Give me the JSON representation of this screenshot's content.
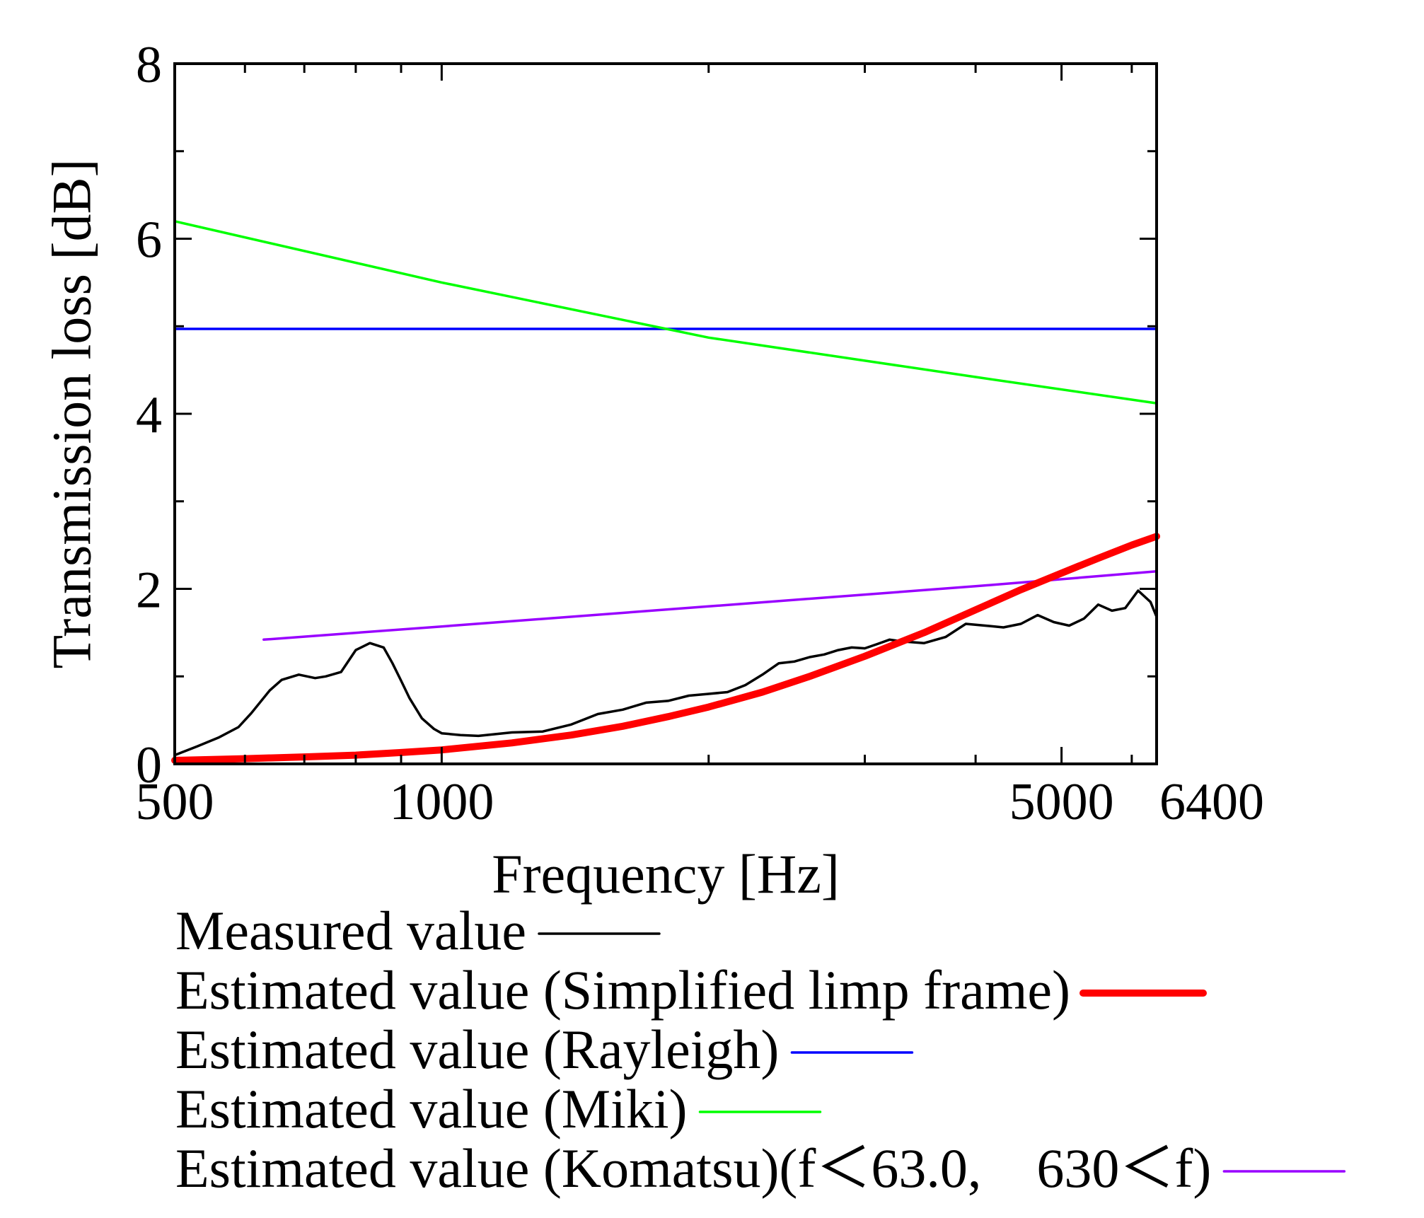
{
  "chart_data": {
    "type": "line",
    "xlabel": "Frequency [Hz]",
    "ylabel": "Transmission loss [dB]",
    "x_scale": "log",
    "xlim": [
      500,
      6400
    ],
    "ylim": [
      0,
      8
    ],
    "x_ticks_major": [
      {
        "value": 500,
        "label": "500"
      },
      {
        "value": 1000,
        "label": "1000"
      },
      {
        "value": 5000,
        "label": "5000"
      },
      {
        "value": 6400,
        "label": "6400"
      }
    ],
    "x_ticks_minor": [
      600,
      700,
      800,
      900,
      2000,
      3000,
      4000,
      6000
    ],
    "y_ticks": [
      {
        "value": 0,
        "label": "0"
      },
      {
        "value": 2,
        "label": "2"
      },
      {
        "value": 4,
        "label": "4"
      },
      {
        "value": 6,
        "label": "6"
      },
      {
        "value": 8,
        "label": "8"
      }
    ],
    "y_ticks_minor": [
      1,
      3,
      5,
      7
    ],
    "grid": false,
    "legend_position": "bottom",
    "series": [
      {
        "name": "Measured value",
        "color": "#000000",
        "width": 3.5,
        "x": [
          500,
          530,
          560,
          590,
          610,
          640,
          660,
          690,
          720,
          740,
          770,
          800,
          830,
          860,
          880,
          900,
          920,
          950,
          980,
          1000,
          1050,
          1100,
          1200,
          1300,
          1400,
          1500,
          1600,
          1700,
          1800,
          1900,
          2000,
          2100,
          2200,
          2300,
          2400,
          2500,
          2600,
          2700,
          2800,
          2900,
          3000,
          3100,
          3200,
          3300,
          3500,
          3700,
          3900,
          4100,
          4300,
          4500,
          4700,
          4900,
          5100,
          5300,
          5500,
          5700,
          5900,
          6100,
          6300,
          6400
        ],
        "y": [
          0.1,
          0.2,
          0.3,
          0.42,
          0.58,
          0.84,
          0.96,
          1.02,
          0.98,
          1.0,
          1.05,
          1.3,
          1.38,
          1.33,
          1.15,
          0.95,
          0.75,
          0.52,
          0.4,
          0.35,
          0.33,
          0.32,
          0.36,
          0.37,
          0.45,
          0.57,
          0.62,
          0.7,
          0.72,
          0.78,
          0.8,
          0.82,
          0.9,
          1.02,
          1.15,
          1.17,
          1.22,
          1.25,
          1.3,
          1.33,
          1.32,
          1.37,
          1.42,
          1.4,
          1.38,
          1.45,
          1.6,
          1.58,
          1.56,
          1.6,
          1.7,
          1.62,
          1.58,
          1.66,
          1.82,
          1.75,
          1.78,
          1.98,
          1.85,
          1.68
        ]
      },
      {
        "name": "Estimated value (Simplified limp frame)",
        "color": "#ff0000",
        "width": 10,
        "x": [
          500,
          600,
          700,
          800,
          900,
          1000,
          1200,
          1400,
          1600,
          1800,
          2000,
          2300,
          2600,
          3000,
          3500,
          4000,
          4500,
          5000,
          5500,
          6000,
          6400
        ],
        "y": [
          0.04,
          0.06,
          0.08,
          0.1,
          0.13,
          0.16,
          0.24,
          0.33,
          0.43,
          0.54,
          0.65,
          0.82,
          1.0,
          1.23,
          1.5,
          1.76,
          1.99,
          2.18,
          2.35,
          2.5,
          2.6
        ]
      },
      {
        "name": "Estimated value (Rayleigh)",
        "color": "#0000ff",
        "width": 3.5,
        "x": [
          500,
          6400
        ],
        "y": [
          4.97,
          4.97
        ]
      },
      {
        "name": "Estimated value (Miki)",
        "color": "#00ff00",
        "width": 3.5,
        "x": [
          500,
          1000,
          2000,
          4000,
          6400
        ],
        "y": [
          6.2,
          5.5,
          4.87,
          4.42,
          4.12
        ]
      },
      {
        "name": "Estimated value (Komatsu)(f＜63.0,　630＜f)",
        "color": "#9900ff",
        "width": 3.5,
        "x": [
          630,
          1000,
          2000,
          4000,
          6400
        ],
        "y": [
          1.42,
          1.57,
          1.8,
          2.03,
          2.2
        ]
      }
    ]
  }
}
